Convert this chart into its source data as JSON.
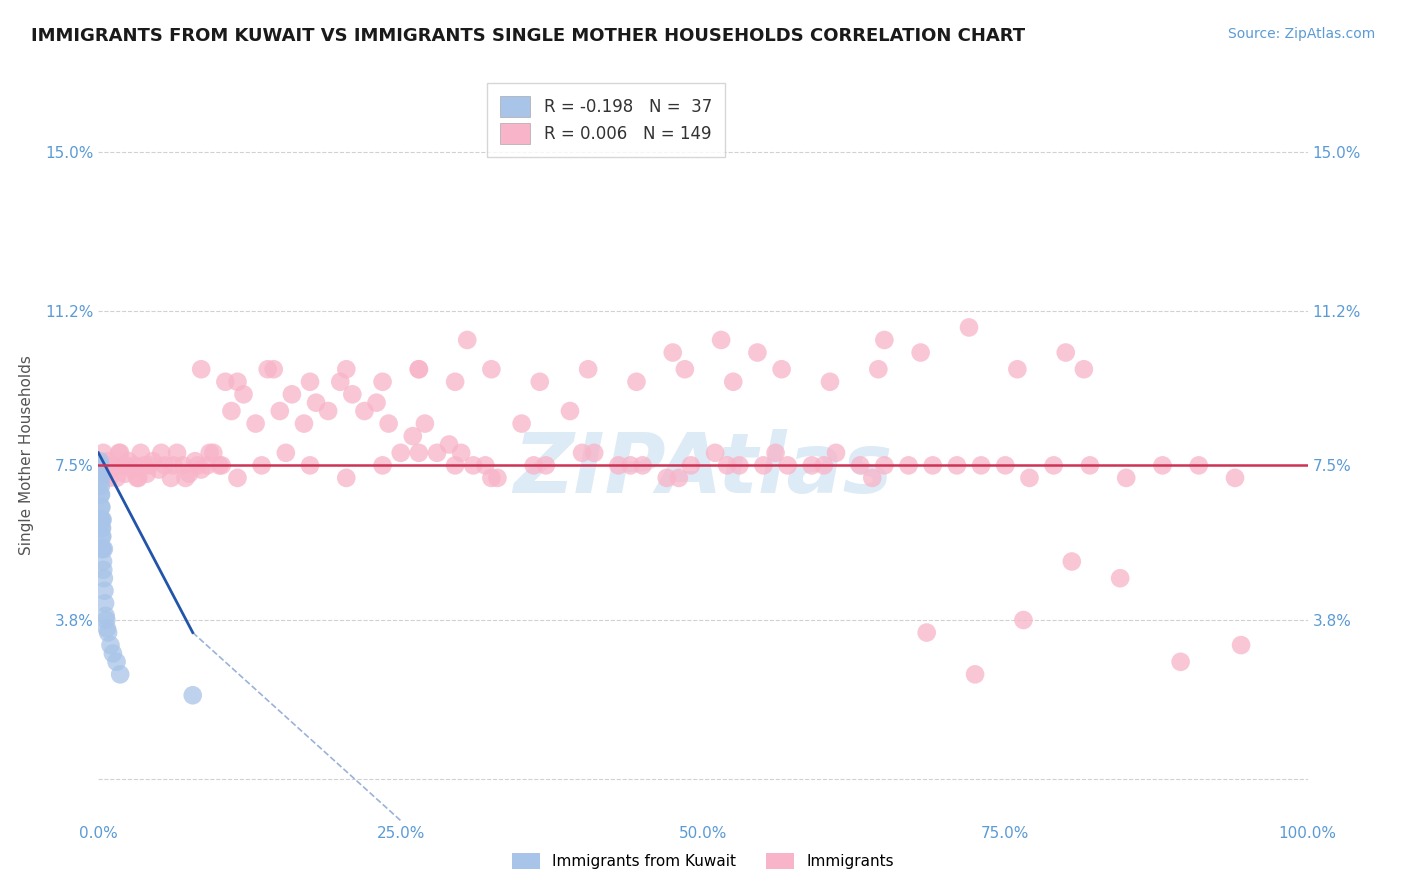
{
  "title": "IMMIGRANTS FROM KUWAIT VS IMMIGRANTS SINGLE MOTHER HOUSEHOLDS CORRELATION CHART",
  "source_text": "Source: ZipAtlas.com",
  "ylabel": "Single Mother Households",
  "watermark": "ZIPAtlas",
  "blue_label": "Immigrants from Kuwait",
  "pink_label": "Immigrants",
  "blue_R": -0.198,
  "blue_N": 37,
  "pink_R": 0.006,
  "pink_N": 149,
  "xlim": [
    0.0,
    100.0
  ],
  "ylim": [
    -1.0,
    16.5
  ],
  "yticks": [
    0.0,
    3.8,
    7.5,
    11.2,
    15.0
  ],
  "ytick_labels": [
    "",
    "3.8%",
    "7.5%",
    "11.2%",
    "15.0%"
  ],
  "xtick_labels": [
    "0.0%",
    "25.0%",
    "50.0%",
    "75.0%",
    "100.0%"
  ],
  "xticks": [
    0,
    25,
    50,
    75,
    100
  ],
  "blue_color": "#a8c4e8",
  "pink_color": "#f8b4c8",
  "blue_line_color": "#2255aa",
  "pink_line_color": "#cc3355",
  "grid_color": "#cccccc",
  "background_color": "#ffffff",
  "blue_scatter_x": [
    0.05,
    0.08,
    0.1,
    0.12,
    0.12,
    0.15,
    0.15,
    0.18,
    0.18,
    0.2,
    0.2,
    0.22,
    0.22,
    0.25,
    0.25,
    0.28,
    0.28,
    0.3,
    0.3,
    0.32,
    0.35,
    0.35,
    0.38,
    0.4,
    0.45,
    0.45,
    0.5,
    0.55,
    0.6,
    0.65,
    0.7,
    0.8,
    1.0,
    1.2,
    1.5,
    1.8,
    7.8
  ],
  "blue_scatter_y": [
    7.3,
    7.5,
    7.2,
    7.4,
    7.6,
    7.1,
    7.5,
    6.8,
    7.2,
    6.5,
    7.0,
    6.2,
    6.8,
    6.0,
    6.5,
    5.8,
    6.2,
    5.5,
    6.0,
    5.8,
    5.5,
    6.2,
    5.2,
    5.0,
    4.8,
    5.5,
    4.5,
    4.2,
    3.9,
    3.8,
    3.6,
    3.5,
    3.2,
    3.0,
    2.8,
    2.5,
    2.0
  ],
  "blue_line_x_start": 0.0,
  "blue_line_x_solid_end": 7.8,
  "blue_line_x_dash_end": 25.0,
  "blue_line_y_start": 7.8,
  "blue_line_y_solid_end": 3.5,
  "blue_line_y_dash_end": -1.0,
  "pink_line_y": 7.5,
  "pink_scatter_x": [
    0.3,
    0.5,
    0.8,
    1.0,
    1.2,
    1.5,
    1.8,
    2.0,
    2.2,
    2.5,
    2.8,
    3.0,
    3.2,
    3.5,
    3.8,
    4.0,
    4.5,
    5.0,
    5.5,
    6.0,
    6.5,
    7.0,
    7.5,
    8.0,
    8.5,
    9.0,
    9.5,
    10.0,
    10.5,
    11.0,
    12.0,
    13.0,
    14.0,
    15.0,
    16.0,
    17.0,
    18.0,
    19.0,
    20.0,
    21.0,
    22.0,
    23.0,
    24.0,
    25.0,
    26.0,
    27.0,
    28.0,
    29.0,
    30.0,
    31.0,
    32.0,
    33.0,
    35.0,
    37.0,
    39.0,
    41.0,
    43.0,
    45.0,
    47.0,
    49.0,
    51.0,
    53.0,
    55.0,
    57.0,
    59.0,
    61.0,
    63.0,
    65.0,
    67.0,
    69.0,
    71.0,
    73.0,
    75.0,
    77.0,
    79.0,
    82.0,
    85.0,
    88.0,
    91.0,
    94.0,
    0.4,
    0.6,
    0.9,
    1.3,
    1.7,
    2.3,
    3.3,
    4.2,
    5.2,
    6.2,
    7.2,
    8.2,
    9.2,
    10.2,
    11.5,
    13.5,
    15.5,
    17.5,
    20.5,
    23.5,
    26.5,
    29.5,
    32.5,
    36.0,
    40.0,
    44.0,
    48.0,
    52.0,
    56.0,
    60.0,
    64.0,
    68.0,
    72.0,
    76.0,
    80.0,
    51.5,
    26.5,
    47.5,
    65.0,
    81.5,
    54.5,
    30.5,
    8.5,
    11.5,
    14.5,
    17.5,
    20.5,
    23.5,
    26.5,
    29.5,
    32.5,
    36.5,
    40.5,
    44.5,
    48.5,
    52.5,
    56.5,
    60.5,
    64.5,
    68.5,
    72.5,
    76.5,
    80.5,
    84.5,
    89.5,
    94.5
  ],
  "pink_scatter_y": [
    7.5,
    7.3,
    7.6,
    7.4,
    7.5,
    7.2,
    7.8,
    7.5,
    7.3,
    7.6,
    7.4,
    7.5,
    7.2,
    7.8,
    7.5,
    7.3,
    7.6,
    7.4,
    7.5,
    7.2,
    7.8,
    7.5,
    7.3,
    7.6,
    7.4,
    7.5,
    7.8,
    7.5,
    9.5,
    8.8,
    9.2,
    8.5,
    9.8,
    8.8,
    9.2,
    8.5,
    9.0,
    8.8,
    9.5,
    9.2,
    8.8,
    9.0,
    8.5,
    7.8,
    8.2,
    8.5,
    7.8,
    8.0,
    7.8,
    7.5,
    7.5,
    7.2,
    8.5,
    7.5,
    8.8,
    7.8,
    7.5,
    7.5,
    7.2,
    7.5,
    7.8,
    7.5,
    7.5,
    7.5,
    7.5,
    7.8,
    7.5,
    7.5,
    7.5,
    7.5,
    7.5,
    7.5,
    7.5,
    7.2,
    7.5,
    7.5,
    7.2,
    7.5,
    7.5,
    7.2,
    7.8,
    7.5,
    7.2,
    7.5,
    7.8,
    7.5,
    7.2,
    7.5,
    7.8,
    7.5,
    7.2,
    7.5,
    7.8,
    7.5,
    7.2,
    7.5,
    7.8,
    7.5,
    7.2,
    7.5,
    7.8,
    7.5,
    7.2,
    7.5,
    7.8,
    7.5,
    7.2,
    7.5,
    7.8,
    7.5,
    7.2,
    10.2,
    10.8,
    9.8,
    10.2,
    10.5,
    9.8,
    10.2,
    10.5,
    9.8,
    10.2,
    10.5,
    9.8,
    9.5,
    9.8,
    9.5,
    9.8,
    9.5,
    9.8,
    9.5,
    9.8,
    9.5,
    9.8,
    9.5,
    9.8,
    9.5,
    9.8,
    9.5,
    9.8,
    3.5,
    2.5,
    3.8,
    5.2,
    4.8,
    2.8,
    3.2
  ]
}
